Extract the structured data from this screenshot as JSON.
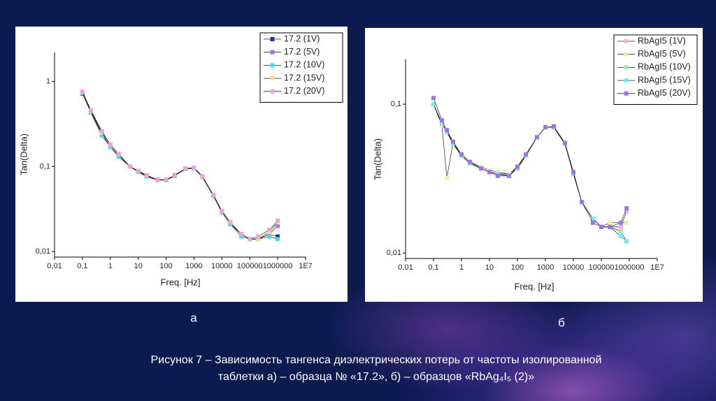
{
  "chart_data": [
    {
      "type": "line",
      "xlabel": "Freq. [Hz]",
      "ylabel": "Tan(Delta)",
      "xscale": "log",
      "yscale": "log",
      "legend": "upper right",
      "xlim": [
        0.01,
        10000000
      ],
      "ylim": [
        0.0086,
        2.2
      ],
      "xticks": [
        {
          "value": 0.01,
          "label": "0,01"
        },
        {
          "value": 0.1,
          "label": "0,1"
        },
        1,
        10,
        100,
        1000,
        10000,
        100000,
        1000000,
        {
          "value": 10000000,
          "label": "1E7"
        }
      ],
      "yticks": [
        {
          "value": 0.01,
          "label": "0,01"
        },
        {
          "value": 0.1,
          "label": "0,1"
        },
        1
      ],
      "x": [
        0.1,
        0.2,
        0.5,
        1,
        2,
        5,
        10,
        20,
        50,
        100,
        200,
        500,
        1000,
        2000,
        5000,
        10000,
        20000,
        50000,
        100000,
        200000,
        500000,
        1000000
      ],
      "series": [
        {
          "name": "17.2 (1V)",
          "color": "#1c2fa8",
          "values": [
            0.72,
            0.44,
            0.24,
            0.17,
            0.135,
            0.1,
            0.087,
            0.077,
            0.07,
            0.07,
            0.078,
            0.094,
            0.095,
            0.076,
            0.046,
            0.03,
            0.022,
            0.016,
            0.014,
            0.014,
            0.016,
            0.015
          ]
        },
        {
          "name": "17.2 (5V)",
          "color": "#a070f0",
          "values": [
            0.74,
            0.45,
            0.25,
            0.18,
            0.14,
            0.1,
            0.088,
            0.078,
            0.07,
            0.07,
            0.079,
            0.095,
            0.096,
            0.075,
            0.045,
            0.029,
            0.021,
            0.016,
            0.014,
            0.014,
            0.016,
            0.02
          ]
        },
        {
          "name": "17.2 (10V)",
          "color": "#40e0f0",
          "values": [
            0.73,
            0.43,
            0.23,
            0.17,
            0.13,
            0.1,
            0.086,
            0.076,
            0.069,
            0.069,
            0.077,
            0.094,
            0.095,
            0.075,
            0.045,
            0.029,
            0.021,
            0.015,
            0.014,
            0.014,
            0.015,
            0.014
          ]
        },
        {
          "name": "17.2 (15V)",
          "color": "#f0e090",
          "values": [
            0.75,
            0.45,
            0.25,
            0.18,
            0.14,
            0.1,
            0.088,
            0.078,
            0.07,
            0.07,
            0.078,
            0.095,
            0.096,
            0.076,
            0.046,
            0.03,
            0.022,
            0.016,
            0.014,
            0.014,
            0.017,
            0.022
          ]
        },
        {
          "name": "17.2 (20V)",
          "color": "#f4a0d8",
          "values": [
            0.76,
            0.46,
            0.26,
            0.18,
            0.14,
            0.1,
            0.089,
            0.079,
            0.07,
            0.07,
            0.078,
            0.095,
            0.097,
            0.077,
            0.046,
            0.03,
            0.022,
            0.016,
            0.014,
            0.015,
            0.018,
            0.023
          ]
        }
      ]
    },
    {
      "type": "line",
      "xlabel": "Freq. [Hz]",
      "ylabel": "Tan(Delta)",
      "xscale": "log",
      "yscale": "log",
      "legend": "upper right",
      "xlim": [
        0.01,
        10000000
      ],
      "ylim": [
        0.0092,
        0.2
      ],
      "xticks": [
        {
          "value": 0.01,
          "label": "0,01"
        },
        {
          "value": 0.1,
          "label": "0,1"
        },
        1,
        10,
        100,
        1000,
        10000,
        100000,
        1000000,
        {
          "value": 10000000,
          "label": "1E7"
        }
      ],
      "yticks": [
        {
          "value": 0.01,
          "label": "0,01"
        },
        {
          "value": 0.1,
          "label": "0,1"
        }
      ],
      "x": [
        0.1,
        0.2,
        0.3,
        0.5,
        1,
        2,
        5,
        10,
        20,
        50,
        100,
        200,
        500,
        1000,
        2000,
        5000,
        10000,
        20000,
        50000,
        100000,
        200000,
        500000,
        800000
      ],
      "series": [
        {
          "name": "RbAgI5 (1V)",
          "color": "#f4b0e0",
          "values": [
            0.1,
            0.075,
            0.065,
            0.055,
            0.045,
            0.04,
            0.037,
            0.035,
            0.034,
            0.034,
            0.038,
            0.045,
            0.06,
            0.07,
            0.07,
            0.054,
            0.035,
            0.022,
            0.017,
            0.015,
            0.015,
            0.015,
            0.019
          ]
        },
        {
          "name": "RbAgI5 (5V)",
          "color": "#f0eca0",
          "values": [
            0.1,
            0.072,
            0.032,
            0.055,
            0.046,
            0.041,
            0.038,
            0.036,
            0.035,
            0.034,
            0.038,
            0.045,
            0.06,
            0.07,
            0.07,
            0.055,
            0.035,
            0.022,
            0.017,
            0.015,
            0.016,
            0.016,
            0.016
          ]
        },
        {
          "name": "RbAgI5 (10V)",
          "color": "#a0f0a0",
          "values": [
            0.1,
            0.074,
            0.066,
            0.055,
            0.045,
            0.04,
            0.037,
            0.035,
            0.034,
            0.033,
            0.037,
            0.045,
            0.06,
            0.07,
            0.07,
            0.054,
            0.034,
            0.022,
            0.017,
            0.015,
            0.015,
            0.014,
            0.012
          ]
        },
        {
          "name": "RbAgI5 (15V)",
          "color": "#70eef0",
          "values": [
            0.1,
            0.074,
            0.065,
            0.054,
            0.045,
            0.04,
            0.037,
            0.035,
            0.034,
            0.033,
            0.037,
            0.045,
            0.06,
            0.07,
            0.07,
            0.054,
            0.034,
            0.022,
            0.017,
            0.015,
            0.015,
            0.013,
            0.012
          ]
        },
        {
          "name": "RbAgI5 (20V)",
          "color": "#a070f0",
          "values": [
            0.11,
            0.078,
            0.067,
            0.056,
            0.046,
            0.041,
            0.037,
            0.035,
            0.033,
            0.033,
            0.038,
            0.046,
            0.06,
            0.07,
            0.071,
            0.055,
            0.035,
            0.022,
            0.016,
            0.015,
            0.015,
            0.016,
            0.02
          ]
        }
      ]
    }
  ],
  "panel_labels": [
    "а",
    "б"
  ],
  "caption": [
    "Рисунок 7 – Зависимость тангенса диэлектрических потерь от частоты изолированной",
    "таблетки а) – образца № «17.2», б) – образцов «RbAg₄I₅ (2)»"
  ]
}
